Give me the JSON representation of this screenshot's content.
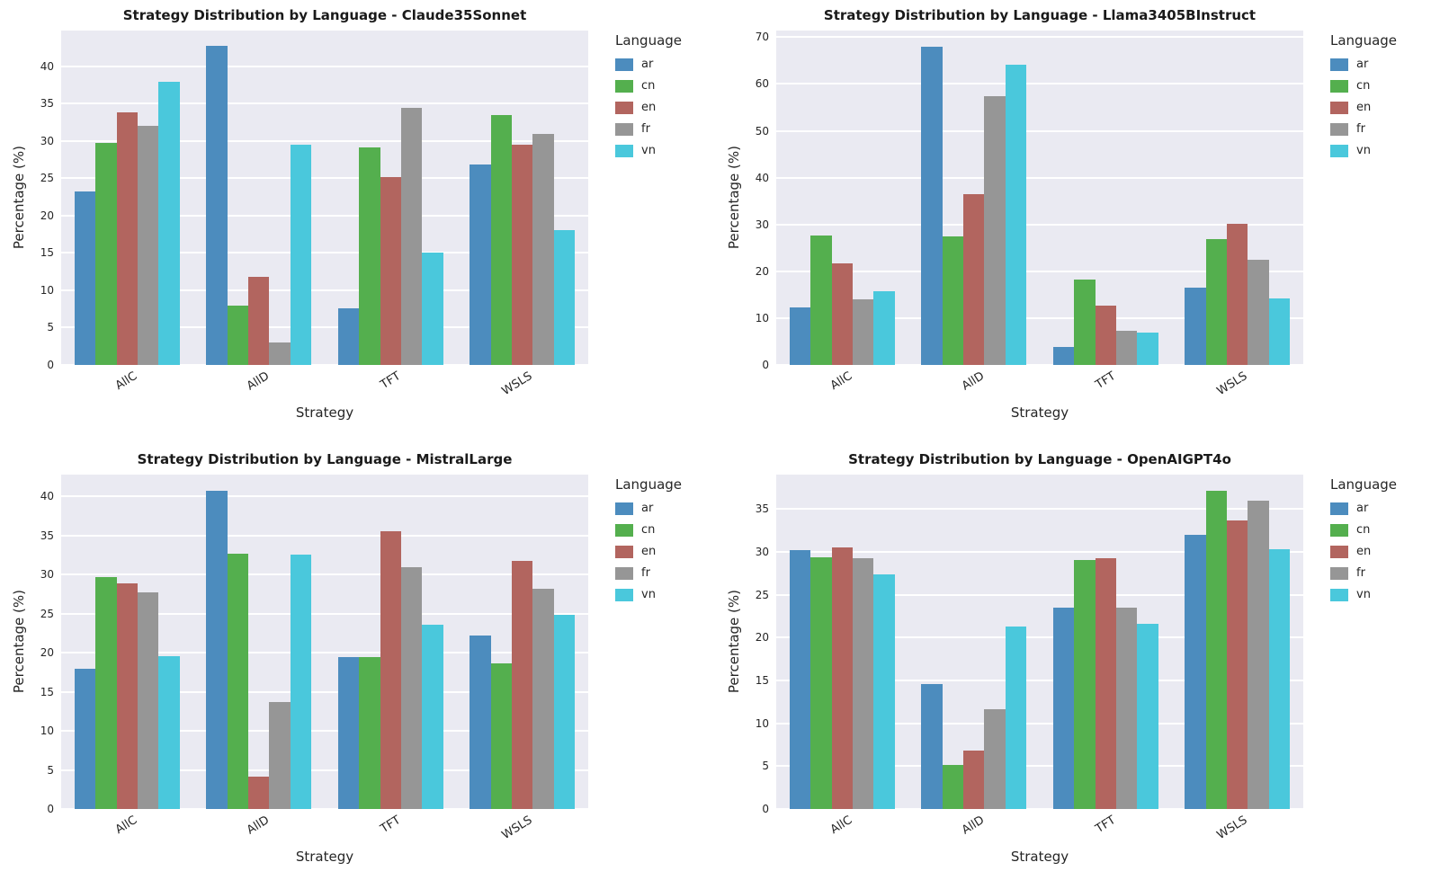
{
  "style": {
    "figure_background": "#FFFFFF",
    "axes_background": "#EAEAF2",
    "grid_color": "#FFFFFF",
    "text_color": "#262626"
  },
  "languages": [
    "ar",
    "cn",
    "en",
    "fr",
    "vn"
  ],
  "colors": {
    "ar": "#4C8CBE",
    "cn": "#54AF4E",
    "en": "#B2655F",
    "fr": "#969696",
    "vn": "#4AC8DC"
  },
  "chart_data": [
    {
      "type": "bar",
      "title": "Strategy Distribution by Language - Claude35Sonnet",
      "xlabel": "Strategy",
      "ylabel": "Percentage (%)",
      "legend_title": "Language",
      "legend_position": "right",
      "grid": true,
      "categories": [
        "AllC",
        "AllD",
        "TFT",
        "WSLS"
      ],
      "series": [
        {
          "name": "ar",
          "values": [
            23.3,
            42.7,
            7.6,
            26.8
          ]
        },
        {
          "name": "cn",
          "values": [
            29.8,
            7.9,
            29.2,
            33.5
          ]
        },
        {
          "name": "en",
          "values": [
            33.9,
            11.8,
            25.2,
            29.5
          ]
        },
        {
          "name": "fr",
          "values": [
            32.0,
            3.0,
            34.4,
            30.9
          ]
        },
        {
          "name": "vn",
          "values": [
            37.9,
            29.5,
            15.0,
            18.1
          ]
        }
      ],
      "yticks": [
        0,
        5,
        10,
        15,
        20,
        25,
        30,
        35,
        40
      ],
      "ylim": [
        0,
        44.8
      ]
    },
    {
      "type": "bar",
      "title": "Strategy Distribution by Language - Llama3405BInstruct",
      "xlabel": "Strategy",
      "ylabel": "Percentage (%)",
      "legend_title": "Language",
      "legend_position": "right",
      "grid": true,
      "categories": [
        "AllC",
        "AllD",
        "TFT",
        "WSLS"
      ],
      "series": [
        {
          "name": "ar",
          "values": [
            12.2,
            68.0,
            3.8,
            16.6
          ]
        },
        {
          "name": "cn",
          "values": [
            27.6,
            27.5,
            18.3,
            26.8
          ]
        },
        {
          "name": "en",
          "values": [
            21.6,
            36.4,
            12.6,
            30.1
          ]
        },
        {
          "name": "fr",
          "values": [
            14.0,
            57.4,
            7.3,
            22.4
          ]
        },
        {
          "name": "vn",
          "values": [
            15.8,
            64.1,
            7.0,
            14.2
          ]
        }
      ],
      "yticks": [
        0,
        10,
        20,
        30,
        40,
        50,
        60,
        70
      ],
      "ylim": [
        0,
        71.4
      ]
    },
    {
      "type": "bar",
      "title": "Strategy Distribution by Language - MistralLarge",
      "xlabel": "Strategy",
      "ylabel": "Percentage (%)",
      "legend_title": "Language",
      "legend_position": "right",
      "grid": true,
      "categories": [
        "AllC",
        "AllD",
        "TFT",
        "WSLS"
      ],
      "series": [
        {
          "name": "ar",
          "values": [
            17.9,
            40.7,
            19.4,
            22.2
          ]
        },
        {
          "name": "cn",
          "values": [
            29.7,
            32.7,
            19.4,
            18.6
          ]
        },
        {
          "name": "en",
          "values": [
            28.9,
            4.1,
            35.6,
            31.7
          ]
        },
        {
          "name": "fr",
          "values": [
            27.7,
            13.7,
            30.9,
            28.2
          ]
        },
        {
          "name": "vn",
          "values": [
            19.6,
            32.6,
            23.6,
            24.8
          ]
        }
      ],
      "yticks": [
        0,
        5,
        10,
        15,
        20,
        25,
        30,
        35,
        40
      ],
      "ylim": [
        0,
        42.8
      ]
    },
    {
      "type": "bar",
      "title": "Strategy Distribution by Language - OpenAIGPT4o",
      "xlabel": "Strategy",
      "ylabel": "Percentage (%)",
      "legend_title": "Language",
      "legend_position": "right",
      "grid": true,
      "categories": [
        "AllC",
        "AllD",
        "TFT",
        "WSLS"
      ],
      "series": [
        {
          "name": "ar",
          "values": [
            30.2,
            14.6,
            23.5,
            32.0
          ]
        },
        {
          "name": "cn",
          "values": [
            29.4,
            5.1,
            29.0,
            37.1
          ]
        },
        {
          "name": "en",
          "values": [
            30.5,
            6.8,
            29.3,
            33.7
          ]
        },
        {
          "name": "fr",
          "values": [
            29.2,
            11.6,
            23.5,
            36.0
          ]
        },
        {
          "name": "vn",
          "values": [
            27.4,
            21.3,
            21.6,
            30.3
          ]
        }
      ],
      "yticks": [
        0,
        5,
        10,
        15,
        20,
        25,
        30,
        35
      ],
      "ylim": [
        0,
        39.0
      ]
    }
  ]
}
